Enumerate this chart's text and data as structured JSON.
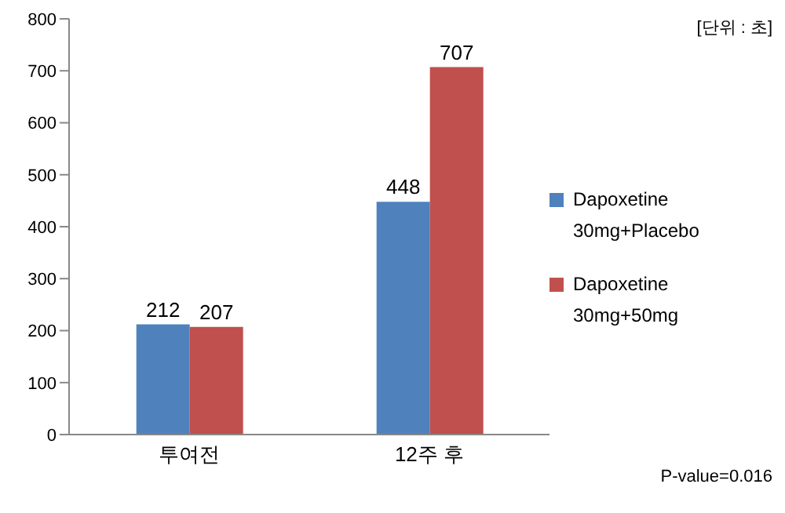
{
  "chart_data": {
    "type": "bar",
    "categories": [
      "투여전",
      "12주 후"
    ],
    "series": [
      {
        "name": "Dapoxetine 30mg+Placebo",
        "color": "#4f81bd",
        "values": [
          212,
          448
        ]
      },
      {
        "name": "Dapoxetine 30mg+50mg",
        "color": "#c0504d",
        "values": [
          207,
          707
        ]
      }
    ],
    "ylim": [
      0,
      800
    ],
    "yticks": [
      0,
      100,
      200,
      300,
      400,
      500,
      600,
      700,
      800
    ],
    "grid": false,
    "legend": "right",
    "data_labels": true,
    "annotations": [
      "[단위 : 초]",
      "P-value=0.016"
    ]
  }
}
